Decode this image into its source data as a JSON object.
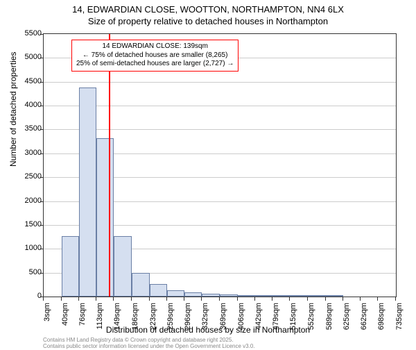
{
  "title_line1": "14, EDWARDIAN CLOSE, WOOTTON, NORTHAMPTON, NN4 6LX",
  "title_line2": "Size of property relative to detached houses in Northampton",
  "chart": {
    "type": "histogram",
    "background_color": "#ffffff",
    "border_color": "#333333",
    "grid_color": "#cccccc",
    "bar_fill": "#d5dff0",
    "bar_border": "#6a7fa5",
    "indicator_color": "#ff0000",
    "indicator_value_sqm": 139,
    "ylim": [
      0,
      5500
    ],
    "ytick_step": 500,
    "y_ticks": [
      0,
      500,
      1000,
      1500,
      2000,
      2500,
      3000,
      3500,
      4000,
      4500,
      5000,
      5500
    ],
    "x_range": [
      3,
      735
    ],
    "x_ticks": [
      3,
      40,
      76,
      113,
      149,
      186,
      223,
      259,
      296,
      332,
      369,
      406,
      442,
      479,
      515,
      552,
      589,
      625,
      662,
      698,
      735
    ],
    "x_tick_suffix": "sqm",
    "bars": [
      {
        "x_start": 3,
        "x_end": 40,
        "value": 0
      },
      {
        "x_start": 40,
        "x_end": 76,
        "value": 1260
      },
      {
        "x_start": 76,
        "x_end": 113,
        "value": 4380
      },
      {
        "x_start": 113,
        "x_end": 149,
        "value": 3320
      },
      {
        "x_start": 149,
        "x_end": 186,
        "value": 1260
      },
      {
        "x_start": 186,
        "x_end": 223,
        "value": 490
      },
      {
        "x_start": 223,
        "x_end": 259,
        "value": 260
      },
      {
        "x_start": 259,
        "x_end": 296,
        "value": 130
      },
      {
        "x_start": 296,
        "x_end": 332,
        "value": 90
      },
      {
        "x_start": 332,
        "x_end": 369,
        "value": 60
      },
      {
        "x_start": 369,
        "x_end": 406,
        "value": 50
      },
      {
        "x_start": 406,
        "x_end": 442,
        "value": 20
      },
      {
        "x_start": 442,
        "x_end": 479,
        "value": 15
      },
      {
        "x_start": 479,
        "x_end": 515,
        "value": 10
      },
      {
        "x_start": 515,
        "x_end": 552,
        "value": 5
      },
      {
        "x_start": 552,
        "x_end": 589,
        "value": 5
      },
      {
        "x_start": 589,
        "x_end": 625,
        "value": 5
      },
      {
        "x_start": 625,
        "x_end": 662,
        "value": 0
      },
      {
        "x_start": 662,
        "x_end": 698,
        "value": 0
      },
      {
        "x_start": 698,
        "x_end": 735,
        "value": 0
      }
    ],
    "ylabel": "Number of detached properties",
    "xlabel": "Distribution of detached houses by size in Northampton",
    "label_fontsize": 12,
    "tick_fontsize": 11,
    "annotation": {
      "line1": "14 EDWARDIAN CLOSE: 139sqm",
      "line2": "← 75% of detached houses are smaller (8,265)",
      "line3": "25% of semi-detached houses are larger (2,727) →",
      "border_color": "#ff0000",
      "text_color": "#000000",
      "fontsize": 10
    }
  },
  "footer_line1": "Contains HM Land Registry data © Crown copyright and database right 2025.",
  "footer_line2": "Contains public sector information licensed under the Open Government Licence v3.0."
}
